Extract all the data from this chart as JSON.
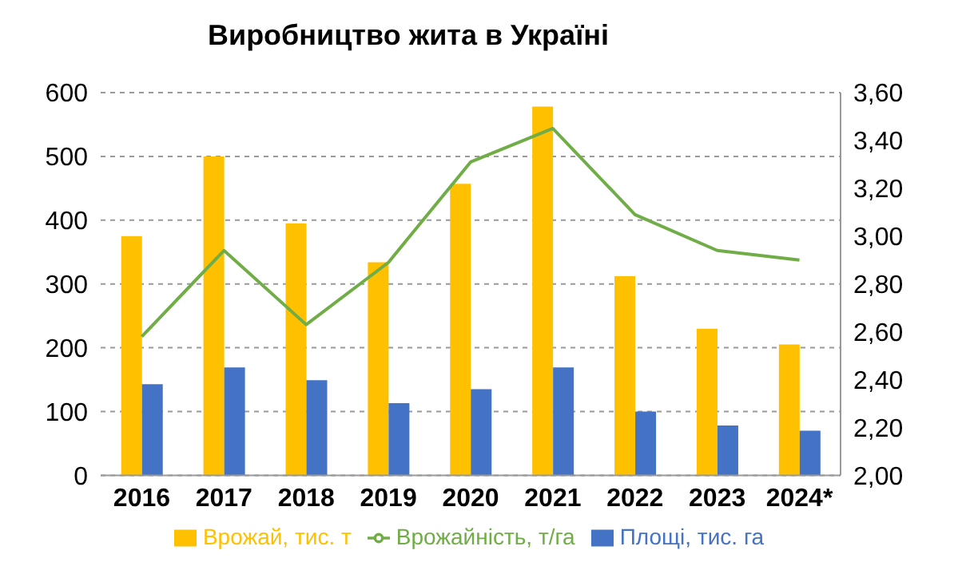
{
  "chart_data": {
    "type": "bar",
    "title": "Виробництво жита в Україні",
    "categories": [
      "2016",
      "2017",
      "2018",
      "2019",
      "2020",
      "2021",
      "2022",
      "2023",
      "2024*"
    ],
    "series": [
      {
        "name": "Врожай, тис. т",
        "color": "#ffc000",
        "values": [
          375,
          500,
          395,
          334,
          457,
          578,
          312,
          230,
          205
        ]
      },
      {
        "name": "Площі, тис. га",
        "color": "#4472c4",
        "values": [
          143,
          169,
          149,
          113,
          135,
          169,
          100,
          78,
          70
        ]
      },
      {
        "name": "Врожайність, т/га",
        "color": "#70ad47",
        "type": "line",
        "axis": "y2",
        "values": [
          2.58,
          2.94,
          2.63,
          2.89,
          3.31,
          3.45,
          3.09,
          2.94,
          2.9
        ]
      }
    ],
    "ylim": [
      0,
      600
    ],
    "yticks": [
      0,
      100,
      200,
      300,
      400,
      500,
      600
    ],
    "y2lim": [
      2,
      3.6
    ],
    "y2ticks": [
      {
        "value": 2,
        "label": "2,00"
      },
      {
        "value": 2.2,
        "label": "2,20"
      },
      {
        "value": 2.4,
        "label": "2,40"
      },
      {
        "value": 2.6,
        "label": "2,60"
      },
      {
        "value": 2.8,
        "label": "2,80"
      },
      {
        "value": 3,
        "label": "3,00"
      },
      {
        "value": 3.2,
        "label": "3,20"
      },
      {
        "value": 3.4,
        "label": "3,40"
      },
      {
        "value": 3.6,
        "label": "3,60"
      }
    ],
    "grid": "y",
    "legend": "bottom",
    "marker": "none"
  }
}
